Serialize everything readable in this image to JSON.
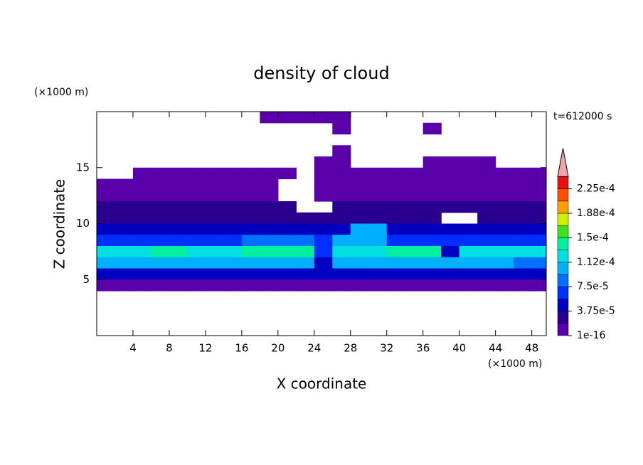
{
  "chart_data": {
    "type": "contour",
    "title": "density of cloud",
    "x_label": "X coordinate",
    "y_label": "Z coordinate",
    "x_unit": "(×1000 m)",
    "y_unit": "(×1000 m)",
    "time_label": "t=612000 s",
    "xlim": [
      0,
      49.6
    ],
    "ylim": [
      0,
      20
    ],
    "xticks": [
      4,
      8,
      12,
      16,
      20,
      24,
      28,
      32,
      36,
      40,
      44,
      48
    ],
    "yticks": [
      5,
      10,
      15
    ],
    "colorbar": {
      "levels": [
        1e-16,
        1.875e-05,
        3.75e-05,
        5.625e-05,
        7.5e-05,
        9.375e-05,
        0.0001125,
        0.00013125,
        0.00015,
        0.00016875,
        0.0001875,
        0.00020625,
        0.000225,
        0.00024375
      ],
      "colors": [
        "#5a00aa",
        "#2a0090",
        "#0000c0",
        "#0030ff",
        "#0070ff",
        "#00b0ff",
        "#00e0e0",
        "#00f0a0",
        "#40e020",
        "#d0f000",
        "#ffa000",
        "#ff5000",
        "#e81010"
      ],
      "extend_color": "#f4a4a4",
      "ticks": [
        1e-16,
        {
          "value": 3.75e-05,
          "label": "3.75e-5"
        },
        {
          "value": 7.5e-05,
          "label": "7.5e-5"
        },
        {
          "value": 0.0001125,
          "label": "1.12e-4"
        },
        {
          "value": 0.00015,
          "label": "1.5e-4"
        },
        {
          "value": 0.0001875,
          "label": "1.88e-4"
        },
        {
          "value": 0.000225,
          "label": "2.25e-4"
        }
      ]
    },
    "field": {
      "x": [
        1,
        3,
        5,
        7,
        9,
        11,
        13,
        15,
        17,
        19,
        21,
        23,
        25,
        27,
        29,
        31,
        33,
        35,
        37,
        39,
        41,
        43,
        45,
        47,
        49
      ],
      "z": [
        19.5,
        18.5,
        17.5,
        16.5,
        15.5,
        14.5,
        13.5,
        12.5,
        11.5,
        10.5,
        9.5,
        8.5,
        7.5,
        6.5,
        5.5,
        4.5
      ],
      "values": [
        [
          null,
          null,
          null,
          null,
          null,
          null,
          null,
          null,
          null,
          5e-06,
          5e-06,
          5e-06,
          5e-06,
          5e-06,
          null,
          null,
          null,
          null,
          null,
          null,
          null,
          null,
          null,
          null,
          null
        ],
        [
          null,
          null,
          null,
          null,
          null,
          null,
          null,
          null,
          null,
          null,
          null,
          null,
          null,
          5e-06,
          null,
          null,
          null,
          null,
          5e-06,
          null,
          null,
          null,
          null,
          null,
          null
        ],
        [
          null,
          null,
          null,
          null,
          null,
          null,
          null,
          null,
          null,
          null,
          null,
          null,
          null,
          null,
          null,
          null,
          null,
          null,
          null,
          null,
          null,
          null,
          null,
          null,
          null
        ],
        [
          null,
          null,
          null,
          null,
          null,
          null,
          null,
          null,
          null,
          null,
          null,
          null,
          null,
          5e-06,
          null,
          null,
          null,
          null,
          null,
          null,
          null,
          null,
          null,
          null,
          null
        ],
        [
          null,
          null,
          null,
          null,
          null,
          null,
          null,
          null,
          null,
          null,
          null,
          null,
          5e-06,
          5e-06,
          null,
          null,
          null,
          null,
          5e-06,
          5e-06,
          5e-06,
          5e-06,
          null,
          null,
          null
        ],
        [
          null,
          null,
          5e-06,
          5e-06,
          5e-06,
          5e-06,
          5e-06,
          5e-06,
          5e-06,
          5e-06,
          5e-06,
          null,
          5e-06,
          5e-06,
          5e-06,
          5e-06,
          5e-06,
          5e-06,
          5e-06,
          5e-06,
          5e-06,
          5e-06,
          5e-06,
          5e-06,
          5e-06
        ],
        [
          5e-06,
          5e-06,
          5e-06,
          5e-06,
          5e-06,
          5e-06,
          5e-06,
          5e-06,
          5e-06,
          5e-06,
          null,
          null,
          5e-06,
          5e-06,
          5e-06,
          5e-06,
          5e-06,
          5e-06,
          5e-06,
          5e-06,
          5e-06,
          5e-06,
          5e-06,
          5e-06,
          5e-06
        ],
        [
          1.2e-05,
          1.2e-05,
          1.2e-05,
          1.2e-05,
          1.2e-05,
          1.2e-05,
          1.2e-05,
          1.2e-05,
          1.2e-05,
          1.2e-05,
          null,
          null,
          1.2e-05,
          1.2e-05,
          1.2e-05,
          1.2e-05,
          1.2e-05,
          1.2e-05,
          1.2e-05,
          1.2e-05,
          1.2e-05,
          1.2e-05,
          1.2e-05,
          1.2e-05,
          1.2e-05
        ],
        [
          2e-05,
          2e-05,
          2e-05,
          2e-05,
          2e-05,
          2e-05,
          2e-05,
          2e-05,
          2e-05,
          2e-05,
          2e-05,
          null,
          null,
          2e-05,
          2e-05,
          2e-05,
          2e-05,
          2e-05,
          2e-05,
          2e-05,
          2e-05,
          2e-05,
          2e-05,
          2e-05,
          2e-05
        ],
        [
          2.8e-05,
          2.8e-05,
          2.8e-05,
          2.8e-05,
          2.8e-05,
          2.8e-05,
          2.8e-05,
          2.8e-05,
          2.8e-05,
          2.8e-05,
          2.8e-05,
          2.8e-05,
          2.8e-05,
          2.8e-05,
          2.8e-05,
          2.8e-05,
          2.8e-05,
          2.8e-05,
          2.8e-05,
          null,
          null,
          2.8e-05,
          2.8e-05,
          2.8e-05,
          2.8e-05
        ],
        [
          4.5e-05,
          4.5e-05,
          4.5e-05,
          4.5e-05,
          4.5e-05,
          4.5e-05,
          4.5e-05,
          4.5e-05,
          4.5e-05,
          4.5e-05,
          4.5e-05,
          4.5e-05,
          4.5e-05,
          4.5e-05,
          0.0001,
          0.0001,
          4.5e-05,
          4.5e-05,
          4.5e-05,
          4.5e-05,
          4.5e-05,
          4.5e-05,
          4.5e-05,
          4.5e-05,
          4.5e-05
        ],
        [
          7e-05,
          7e-05,
          7e-05,
          7e-05,
          7e-05,
          7e-05,
          7e-05,
          7e-05,
          9e-05,
          9e-05,
          9e-05,
          9e-05,
          7e-05,
          0.00011,
          0.00011,
          0.00011,
          7e-05,
          7e-05,
          7e-05,
          7e-05,
          7e-05,
          7e-05,
          7e-05,
          7e-05,
          7e-05
        ],
        [
          0.00012,
          0.00012,
          0.00012,
          0.000145,
          0.000145,
          0.00012,
          0.00012,
          0.00012,
          0.000145,
          0.000145,
          0.000145,
          0.000145,
          6e-05,
          0.00012,
          0.00012,
          0.00012,
          0.00014,
          0.00014,
          0.00014,
          5e-05,
          0.00012,
          0.00012,
          0.00012,
          0.00012,
          0.00012
        ],
        [
          0.0001,
          0.0001,
          0.0001,
          0.0001,
          0.0001,
          0.0001,
          0.0001,
          0.0001,
          0.0001,
          0.0001,
          0.0001,
          0.0001,
          5e-05,
          0.0001,
          0.0001,
          0.0001,
          0.0001,
          0.0001,
          0.0001,
          0.0001,
          0.0001,
          0.0001,
          0.0001,
          8e-05,
          8e-05
        ],
        [
          4e-05,
          4e-05,
          4e-05,
          4e-05,
          4e-05,
          4e-05,
          4e-05,
          4e-05,
          4e-05,
          4e-05,
          4e-05,
          4e-05,
          4e-05,
          4e-05,
          4e-05,
          4e-05,
          4e-05,
          4e-05,
          4e-05,
          4e-05,
          4e-05,
          4e-05,
          4e-05,
          4e-05,
          4e-05
        ],
        [
          5e-06,
          5e-06,
          5e-06,
          5e-06,
          5e-06,
          5e-06,
          5e-06,
          5e-06,
          5e-06,
          5e-06,
          5e-06,
          5e-06,
          5e-06,
          5e-06,
          5e-06,
          5e-06,
          5e-06,
          5e-06,
          5e-06,
          5e-06,
          5e-06,
          5e-06,
          5e-06,
          5e-06,
          5e-06
        ]
      ]
    }
  }
}
